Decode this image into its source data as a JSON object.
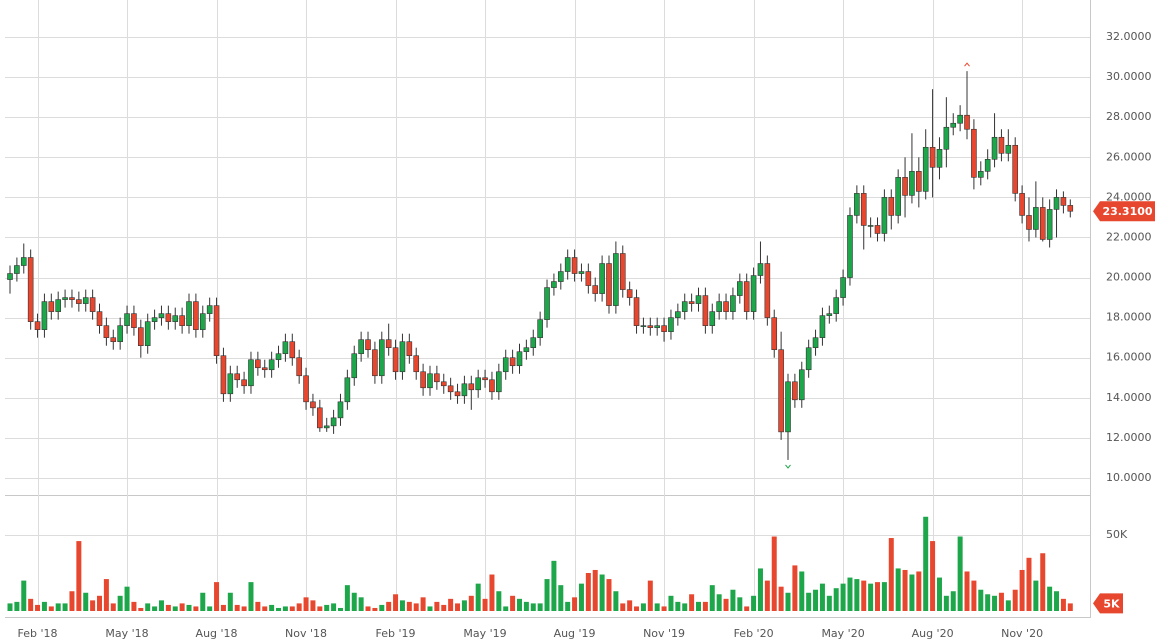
{
  "chart_data": [
    {
      "type": "candlestick",
      "categories": [
        null,
        null,
        null,
        null,
        "Feb '18",
        null,
        null,
        null,
        null,
        null,
        null,
        null,
        null,
        null,
        null,
        null,
        null,
        "May '18",
        null,
        null,
        null,
        null,
        null,
        null,
        null,
        null,
        null,
        null,
        null,
        null,
        "Aug '18",
        null,
        null,
        null,
        null,
        null,
        null,
        null,
        null,
        null,
        null,
        null,
        null,
        "Nov '18",
        null,
        null,
        null,
        null,
        null,
        null,
        null,
        null,
        null,
        null,
        null,
        null,
        "Feb '19",
        null,
        null,
        null,
        null,
        null,
        null,
        null,
        null,
        null,
        null,
        null,
        null,
        "May '19",
        null,
        null,
        null,
        null,
        null,
        null,
        null,
        null,
        null,
        null,
        null,
        null,
        "Aug '19",
        null,
        null,
        null,
        null,
        null,
        null,
        null,
        null,
        null,
        null,
        null,
        null,
        "Nov '19",
        null,
        null,
        null,
        null,
        null,
        null,
        null,
        null,
        null,
        null,
        null,
        null,
        "Feb '20",
        null,
        null,
        null,
        null,
        null,
        null,
        null,
        null,
        null,
        null,
        null,
        null,
        "May '20",
        null,
        null,
        null,
        null,
        null,
        null,
        null,
        null,
        null,
        null,
        null,
        null,
        "Aug '20",
        null,
        null,
        null,
        null,
        null,
        null,
        null,
        null,
        null,
        null,
        null,
        null,
        "Nov '20",
        null,
        null,
        null,
        null,
        null,
        null,
        null
      ],
      "open": [
        19.9,
        20.2,
        20.6,
        21.0,
        17.8,
        17.4,
        18.8,
        18.3,
        18.9,
        19.0,
        18.9,
        18.7,
        19.0,
        18.3,
        17.6,
        17.0,
        16.8,
        17.6,
        18.2,
        17.5,
        16.6,
        17.8,
        18.0,
        18.2,
        17.8,
        18.1,
        17.6,
        18.8,
        17.4,
        18.2,
        18.6,
        16.1,
        14.2,
        15.2,
        14.9,
        14.6,
        15.9,
        15.5,
        15.4,
        15.9,
        16.2,
        16.8,
        16.0,
        15.1,
        13.8,
        13.5,
        12.5,
        12.6,
        13.0,
        13.8,
        15.0,
        16.2,
        16.9,
        16.4,
        15.1,
        16.9,
        16.5,
        15.3,
        16.8,
        16.1,
        15.3,
        14.5,
        15.2,
        14.8,
        14.6,
        14.3,
        14.1,
        14.7,
        14.4,
        15.0,
        14.9,
        14.3,
        15.3,
        16.0,
        15.6,
        16.3,
        16.5,
        17.0,
        17.9,
        19.5,
        19.8,
        20.3,
        21.0,
        20.2,
        20.3,
        19.6,
        19.2,
        20.7,
        18.6,
        21.2,
        19.4,
        19.0,
        17.6,
        17.6,
        17.5,
        17.6,
        17.3,
        18.0,
        18.3,
        18.8,
        18.7,
        19.1,
        17.6,
        18.3,
        18.8,
        18.3,
        19.1,
        19.8,
        18.3,
        20.1,
        20.7,
        18.0,
        16.4,
        12.3,
        14.8,
        13.9,
        15.4,
        16.5,
        17.0,
        18.1,
        18.2,
        19.0,
        20.0,
        23.1,
        24.2,
        22.6,
        22.6,
        22.2,
        24.0,
        23.1,
        25.0,
        24.1,
        25.3,
        24.3,
        26.5,
        25.5,
        26.4,
        27.5,
        27.7,
        28.1,
        27.4,
        25.0,
        25.3,
        25.9,
        27.0,
        26.2,
        26.6,
        24.2,
        23.1,
        22.4,
        23.5,
        21.9,
        23.4,
        24.0,
        23.6
      ],
      "high": [
        20.6,
        21.0,
        21.7,
        21.4,
        18.2,
        19.2,
        19.2,
        19.3,
        19.4,
        19.4,
        19.3,
        19.4,
        19.4,
        18.7,
        18.0,
        17.4,
        18.0,
        18.6,
        18.6,
        17.9,
        18.2,
        18.4,
        18.6,
        18.6,
        18.5,
        18.5,
        19.2,
        19.2,
        18.6,
        19.0,
        19.0,
        16.5,
        15.6,
        15.6,
        15.3,
        16.3,
        16.3,
        15.9,
        16.3,
        16.6,
        17.2,
        17.2,
        16.4,
        15.5,
        14.2,
        13.9,
        13.0,
        13.4,
        14.2,
        15.4,
        16.6,
        17.3,
        17.3,
        16.8,
        17.3,
        17.7,
        16.9,
        17.2,
        17.2,
        16.5,
        15.7,
        15.6,
        15.6,
        15.2,
        15.0,
        14.7,
        15.1,
        15.1,
        15.4,
        15.4,
        15.3,
        15.7,
        16.4,
        16.4,
        16.7,
        16.9,
        17.4,
        18.3,
        19.9,
        20.2,
        20.7,
        21.4,
        21.4,
        20.7,
        20.7,
        20.0,
        21.1,
        21.1,
        21.8,
        21.6,
        19.8,
        19.4,
        18.0,
        18.0,
        18.0,
        18.0,
        18.4,
        18.7,
        19.2,
        19.2,
        19.5,
        19.5,
        18.7,
        19.2,
        19.2,
        19.5,
        20.2,
        20.2,
        20.5,
        21.8,
        21.1,
        18.4,
        17.3,
        15.2,
        15.2,
        15.8,
        16.9,
        17.4,
        18.5,
        18.6,
        19.4,
        20.4,
        23.5,
        24.6,
        24.6,
        23.0,
        23.0,
        24.4,
        24.4,
        25.4,
        26.0,
        27.2,
        26.0,
        27.4,
        29.4,
        27.0,
        29.0,
        28.2,
        28.6,
        30.3,
        27.9,
        25.8,
        26.4,
        28.2,
        27.4,
        27.4,
        27.0,
        24.6,
        24.0,
        24.8,
        24.0,
        23.9,
        24.4,
        24.3,
        23.9
      ],
      "low": [
        19.2,
        19.8,
        20.2,
        17.4,
        17.0,
        17.0,
        17.9,
        17.9,
        18.5,
        18.5,
        18.3,
        18.3,
        17.9,
        17.2,
        16.6,
        16.4,
        16.4,
        17.2,
        17.1,
        16.0,
        16.2,
        17.4,
        17.6,
        17.4,
        17.4,
        17.2,
        17.2,
        17.0,
        17.0,
        17.8,
        15.7,
        13.8,
        13.8,
        14.5,
        14.2,
        14.2,
        15.1,
        15.0,
        15.0,
        15.5,
        15.8,
        15.6,
        14.7,
        13.4,
        13.1,
        12.3,
        12.3,
        12.2,
        12.6,
        13.4,
        14.6,
        15.8,
        16.0,
        14.7,
        14.7,
        16.1,
        14.9,
        14.9,
        15.7,
        14.9,
        14.1,
        14.1,
        14.4,
        14.2,
        13.9,
        13.7,
        13.7,
        13.4,
        14.0,
        14.5,
        13.9,
        13.9,
        14.9,
        15.2,
        15.2,
        15.9,
        16.1,
        16.6,
        17.5,
        19.1,
        19.4,
        19.9,
        19.8,
        19.8,
        19.2,
        18.8,
        18.8,
        18.2,
        18.2,
        19.0,
        18.6,
        17.2,
        17.2,
        17.1,
        17.1,
        16.8,
        16.9,
        17.6,
        17.9,
        18.3,
        18.3,
        17.2,
        17.2,
        17.9,
        17.9,
        17.9,
        18.7,
        17.9,
        17.9,
        19.7,
        17.6,
        16.0,
        11.9,
        10.9,
        13.5,
        13.5,
        15.0,
        16.1,
        16.6,
        17.7,
        17.8,
        18.6,
        19.6,
        22.7,
        21.4,
        22.0,
        21.8,
        21.8,
        22.4,
        22.7,
        23.0,
        23.7,
        23.5,
        23.9,
        24.0,
        24.9,
        25.5,
        27.1,
        27.3,
        26.9,
        24.4,
        24.6,
        24.9,
        25.5,
        25.8,
        25.8,
        23.8,
        22.7,
        21.8,
        22.0,
        21.8,
        21.5,
        22.0,
        23.2,
        23.0
      ],
      "close": [
        20.2,
        20.6,
        21.0,
        17.8,
        17.4,
        18.8,
        18.3,
        18.9,
        19.0,
        18.9,
        18.7,
        19.0,
        18.3,
        17.6,
        17.0,
        16.8,
        17.6,
        18.2,
        17.5,
        16.6,
        17.8,
        18.0,
        18.2,
        17.8,
        18.1,
        17.6,
        18.8,
        17.4,
        18.2,
        18.6,
        16.1,
        14.2,
        15.2,
        14.9,
        14.6,
        15.9,
        15.5,
        15.4,
        15.9,
        16.2,
        16.8,
        16.0,
        15.1,
        13.8,
        13.5,
        12.5,
        12.6,
        13.0,
        13.8,
        15.0,
        16.2,
        16.9,
        16.4,
        15.1,
        16.9,
        16.5,
        15.3,
        16.8,
        16.1,
        15.3,
        14.5,
        15.2,
        14.8,
        14.6,
        14.3,
        14.1,
        14.7,
        14.4,
        15.0,
        14.9,
        14.3,
        15.3,
        16.0,
        15.6,
        16.3,
        16.5,
        17.0,
        17.9,
        19.5,
        19.8,
        20.3,
        21.0,
        20.2,
        20.3,
        19.6,
        19.2,
        20.7,
        18.6,
        21.2,
        19.4,
        19.0,
        17.6,
        17.6,
        17.5,
        17.6,
        17.3,
        18.0,
        18.3,
        18.8,
        18.7,
        19.1,
        17.6,
        18.3,
        18.8,
        18.3,
        19.1,
        19.8,
        18.3,
        20.1,
        20.7,
        18.0,
        16.4,
        12.3,
        14.8,
        13.9,
        15.4,
        16.5,
        17.0,
        18.1,
        18.2,
        19.0,
        20.0,
        23.1,
        24.2,
        22.6,
        22.6,
        22.2,
        24.0,
        23.1,
        25.0,
        24.1,
        25.3,
        24.3,
        26.5,
        25.5,
        26.4,
        27.5,
        27.7,
        28.1,
        27.4,
        25.0,
        25.3,
        25.9,
        27.0,
        26.2,
        26.6,
        24.2,
        23.1,
        22.4,
        23.5,
        21.9,
        23.4,
        24.0,
        23.6,
        23.31
      ],
      "up_color": "#1ea64b",
      "down_color": "#e8472f",
      "ylim": [
        9.2,
        33.6
      ],
      "yticks": [
        {
          "value": 10,
          "label": "10.0000"
        },
        {
          "value": 12,
          "label": "12.0000"
        },
        {
          "value": 14,
          "label": "14.0000"
        },
        {
          "value": 16,
          "label": "16.0000"
        },
        {
          "value": 18,
          "label": "18.0000"
        },
        {
          "value": 20,
          "label": "20.0000"
        },
        {
          "value": 22,
          "label": "22.0000"
        },
        {
          "value": 24,
          "label": "24.0000"
        },
        {
          "value": 26,
          "label": "26.0000"
        },
        {
          "value": 28,
          "label": "28.0000"
        },
        {
          "value": 30,
          "label": "30.0000"
        },
        {
          "value": 32,
          "label": "32.0000"
        }
      ],
      "grid": true,
      "last_value": {
        "value": 23.31,
        "label": "23.3100"
      }
    },
    {
      "type": "bar",
      "values": [
        5000,
        6000,
        20000,
        8000,
        4000,
        6000,
        3000,
        5000,
        5000,
        13000,
        46000,
        12000,
        7000,
        10000,
        21000,
        5000,
        10000,
        16000,
        6000,
        2000,
        5000,
        3000,
        7000,
        4000,
        3000,
        5000,
        4000,
        3000,
        12000,
        3000,
        19000,
        4000,
        12000,
        4000,
        3000,
        19000,
        6000,
        3000,
        4000,
        2000,
        3000,
        3000,
        5000,
        9000,
        7000,
        3000,
        4000,
        5000,
        2000,
        17000,
        12000,
        9000,
        3000,
        2000,
        4000,
        6000,
        11000,
        7000,
        6000,
        5000,
        9000,
        3000,
        6000,
        4000,
        8000,
        5000,
        7000,
        10000,
        18000,
        8000,
        24000,
        13000,
        3000,
        10000,
        8000,
        6000,
        5000,
        5000,
        21000,
        33000,
        17000,
        6000,
        9000,
        18000,
        25000,
        27000,
        24000,
        21000,
        13000,
        5000,
        7000,
        3000,
        5000,
        20000,
        5000,
        3000,
        10000,
        6000,
        5000,
        11000,
        6000,
        6000,
        17000,
        11000,
        8000,
        14000,
        9000,
        3000,
        10000,
        28000,
        20000,
        49000,
        16000,
        12000,
        30000,
        26000,
        12000,
        14000,
        18000,
        10000,
        15000,
        18000,
        22000,
        21000,
        20000,
        18000,
        19000,
        19000,
        48000,
        28000,
        27000,
        24000,
        26000,
        62000,
        46000,
        22000,
        10000,
        13000,
        49000,
        26000,
        20000,
        14000,
        11000,
        10000,
        12000,
        7000,
        14000,
        27000,
        35000,
        20000,
        38000,
        16000,
        13000,
        8000,
        5000
      ],
      "ylim": [
        0,
        75000
      ],
      "yticks": [
        {
          "value": 50000,
          "label": "50K"
        }
      ],
      "grid": true,
      "last_value": {
        "value": 5000,
        "label": "5K"
      }
    }
  ]
}
